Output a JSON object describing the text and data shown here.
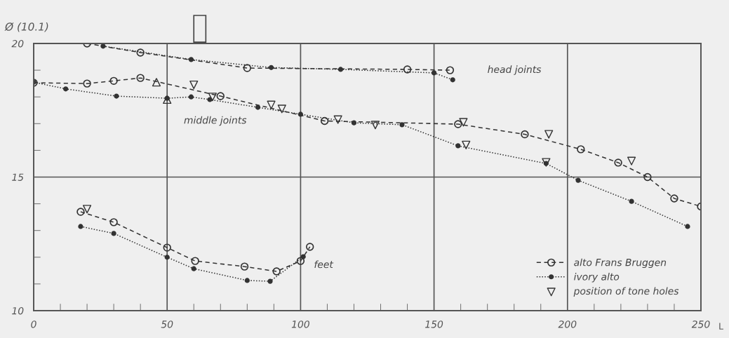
{
  "chart_data": {
    "type": "line",
    "title": "Ø (10.1)",
    "xlabel": "L",
    "xlim": [
      0,
      250
    ],
    "xticks": [
      0,
      50,
      100,
      150,
      200,
      250
    ],
    "ylim": [
      10,
      20
    ],
    "yticks": [
      10,
      15,
      20
    ],
    "grid": true,
    "legend": "bottom right",
    "series": [
      {
        "name": "alto Frans Bruggen",
        "color": "#333333",
        "line_style": "dashed",
        "marker": "circle",
        "x": [
          0,
          20,
          30,
          40,
          70,
          109,
          159,
          184,
          205,
          219,
          230,
          240,
          250
        ],
        "values": [
          18.53,
          18.5,
          18.6,
          18.71,
          18.03,
          17.1,
          16.98,
          16.6,
          16.04,
          15.54,
          15.0,
          14.2,
          13.9
        ]
      },
      {
        "name": "ivory alto",
        "color": "#333333",
        "line_style": "dotted",
        "marker": "circle",
        "x": [
          0,
          12,
          31,
          50,
          59,
          66,
          84,
          100,
          120,
          138,
          159,
          192,
          204,
          224,
          245
        ],
        "values": [
          18.55,
          18.3,
          18.03,
          17.95,
          18.0,
          17.9,
          17.61,
          17.35,
          17.03,
          16.96,
          16.17,
          15.51,
          14.88,
          14.09,
          13.15
        ]
      },
      {
        "color": "#333333",
        "line_style": "dashed",
        "marker": "circle",
        "x": [
          20,
          40,
          80,
          140,
          156
        ],
        "values": [
          20.0,
          19.66,
          19.08,
          19.03,
          19.0
        ]
      },
      {
        "color": "#333333",
        "line_style": "dotted",
        "marker": "circle",
        "x": [
          26,
          59,
          89,
          115,
          150,
          157
        ],
        "values": [
          19.9,
          19.4,
          19.1,
          19.03,
          18.9,
          18.64
        ]
      },
      {
        "color": "#333333",
        "line_style": "dashed",
        "marker": "circle",
        "x": [
          17.6,
          30,
          50,
          60.5,
          79,
          91,
          100,
          103.5
        ],
        "values": [
          13.7,
          13.31,
          12.36,
          11.86,
          11.65,
          11.47,
          11.86,
          12.39
        ]
      },
      {
        "color": "#333333",
        "line_style": "dotted",
        "marker": "circle",
        "x": [
          17.6,
          30,
          50,
          60,
          80,
          88.6,
          101
        ],
        "values": [
          13.15,
          12.89,
          12.0,
          11.57,
          11.13,
          11.1,
          12.02
        ]
      },
      {
        "name": "position of tone holes",
        "type": "scatter",
        "color": "#333333",
        "marker": "triangle_down",
        "x": [
          60,
          67,
          89,
          93,
          114,
          128,
          161,
          162,
          193,
          192,
          224,
          20
        ],
        "values": [
          18.45,
          18.0,
          17.7,
          17.55,
          17.15,
          16.95,
          17.05,
          16.2,
          16.6,
          15.55,
          15.6,
          13.8
        ]
      },
      {
        "type": "scatter",
        "color": "#333333",
        "marker": "triangle",
        "x": [
          46,
          50
        ],
        "values": [
          18.55,
          17.9
        ]
      }
    ],
    "annotations": [
      "head joints",
      "middle joints",
      "feet"
    ]
  }
}
